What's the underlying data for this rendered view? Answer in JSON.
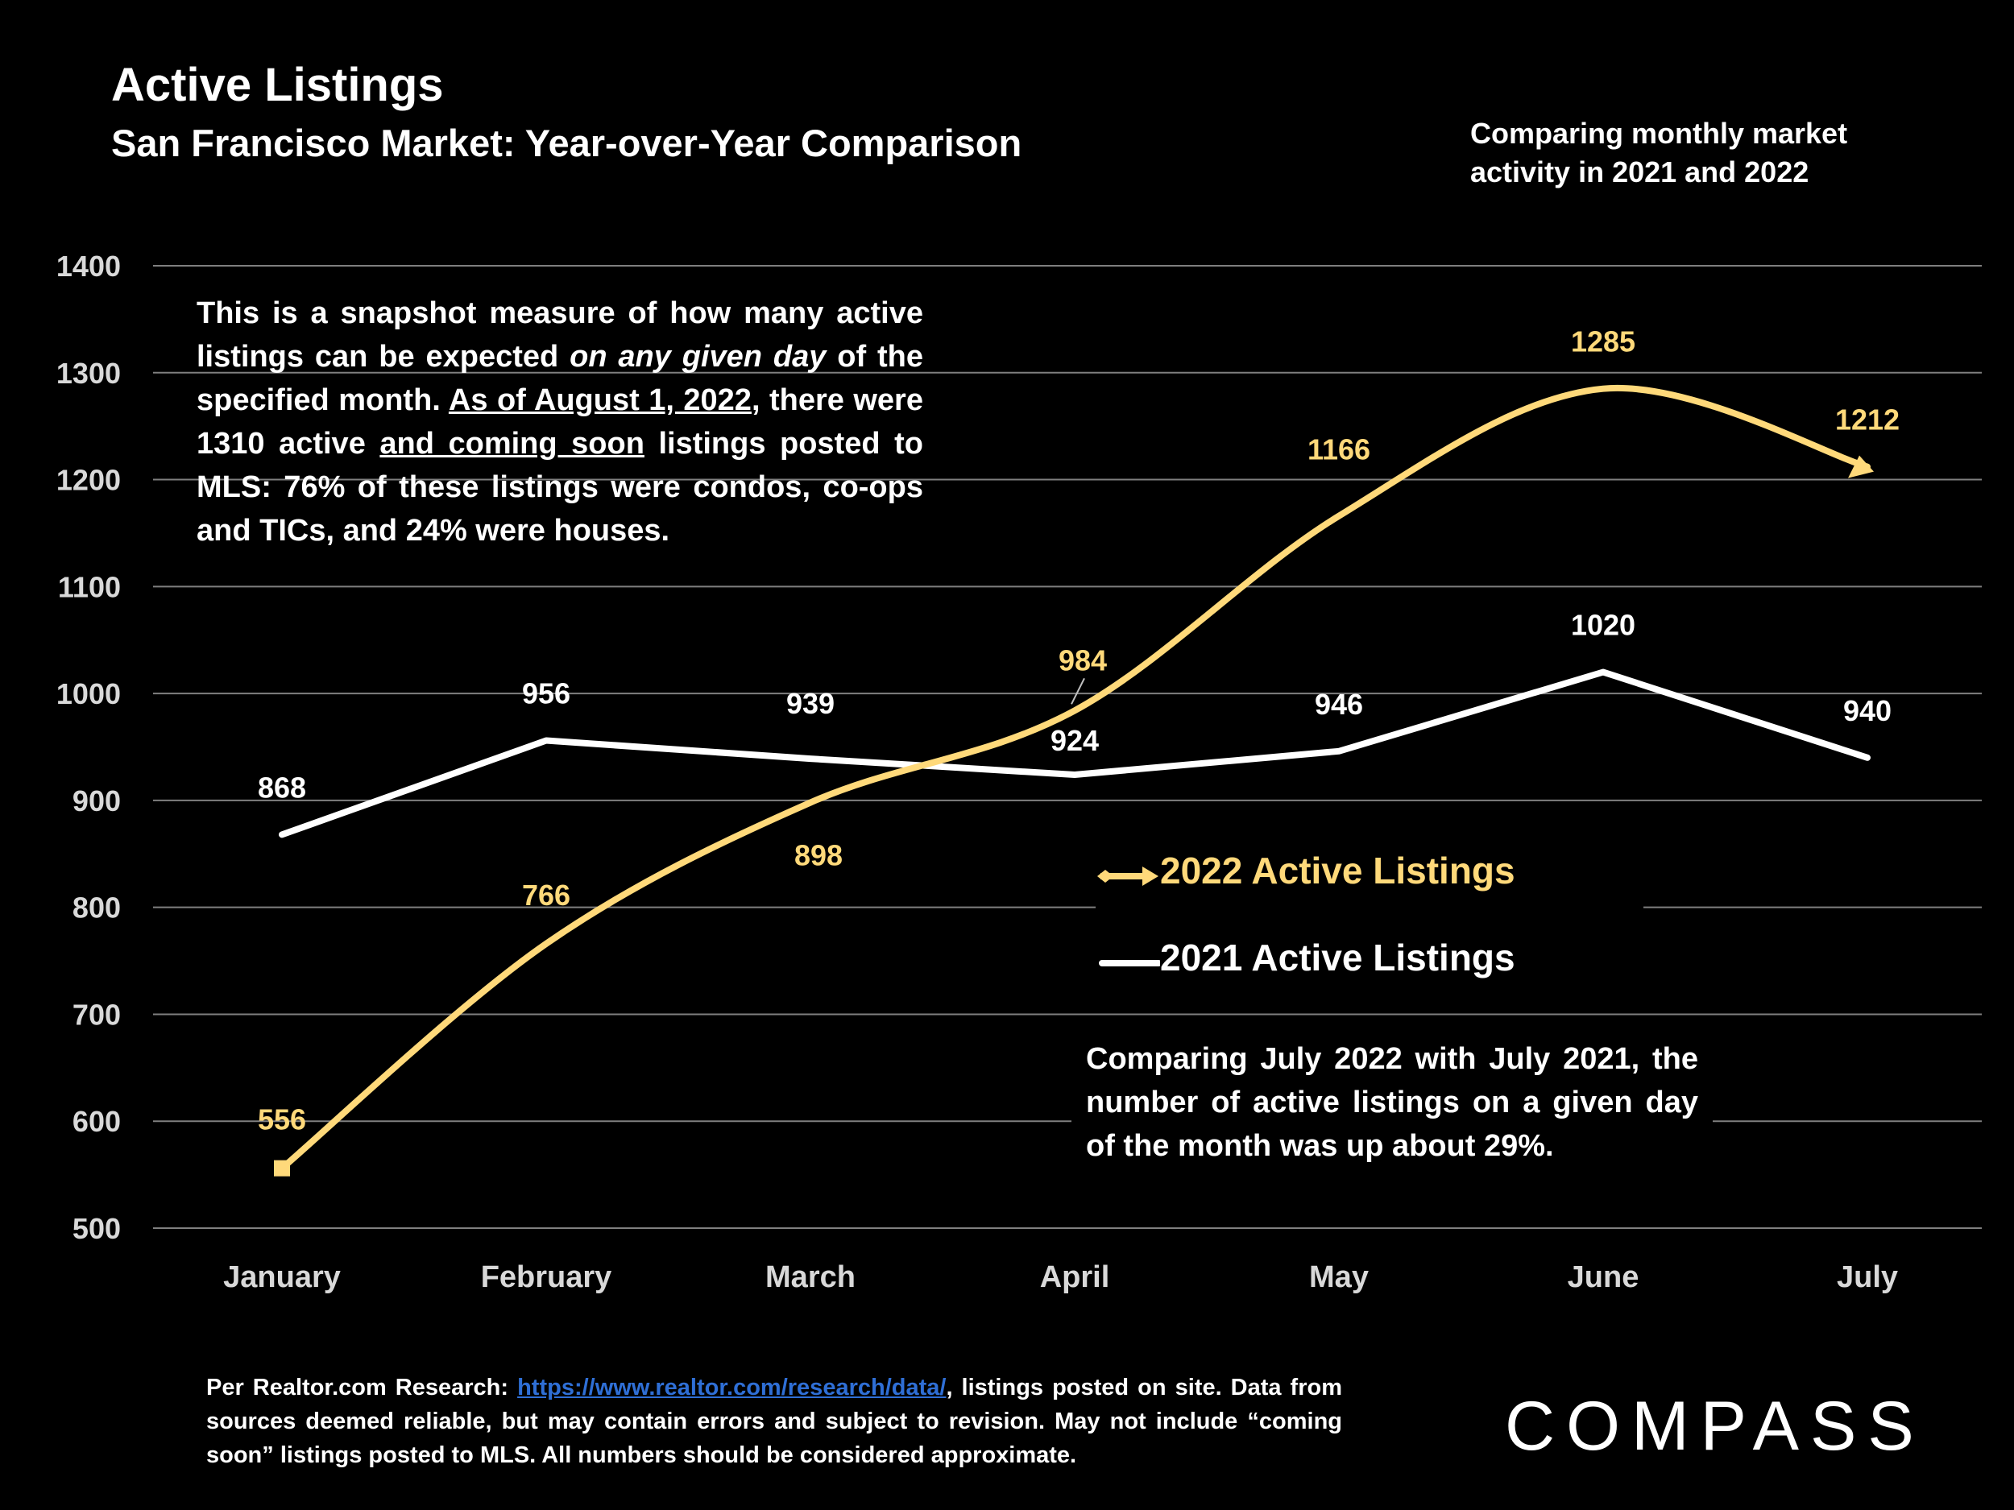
{
  "header": {
    "title": "Active Listings",
    "subtitle": "San Francisco Market: Year-over-Year Comparison",
    "note": "Comparing monthly market activity in 2021 and 2022"
  },
  "annotation": {
    "p1": "This is a snapshot measure of how many active listings can be expected ",
    "p1_italic": "on any given day",
    "p2": " of the specified month. ",
    "p2_underline": "As of August 1, 2022",
    "p3": ", there were 1310 active ",
    "p3_underline": "and coming soon",
    "p4": " listings posted to MLS: 76% of these listings were condos, co-ops and TICs, and 24% were houses."
  },
  "comparison_note": "Comparing July 2022 with July 2021, the number of active listings on a given day of the month was up about 29%.",
  "legend": {
    "series_2022": "2022 Active Listings",
    "series_2021": "2021 Active Listings"
  },
  "footer": {
    "prefix": "Per Realtor.com Research: ",
    "link": "https://www.realtor.com/research/data/",
    "rest": ", listings posted on site. Data from sources deemed reliable, but may contain errors and subject to revision. May not include “coming soon” listings posted to MLS. All numbers should be considered approximate."
  },
  "logo": "COMPASS",
  "colors": {
    "series_2022": "#ffd97a",
    "series_2021": "#ffffff",
    "gridline": "#7f7f7f",
    "link": "#2f6fd6"
  },
  "chart_data": {
    "type": "line",
    "categories": [
      "January",
      "February",
      "March",
      "April",
      "May",
      "June",
      "July"
    ],
    "series": [
      {
        "name": "2022 Active Listings",
        "values": [
          556,
          766,
          898,
          984,
          1166,
          1285,
          1212
        ]
      },
      {
        "name": "2021 Active Listings",
        "values": [
          868,
          956,
          939,
          924,
          946,
          1020,
          940
        ]
      }
    ],
    "ylim": [
      500,
      1400
    ],
    "yticks": [
      500,
      600,
      700,
      800,
      900,
      1000,
      1100,
      1200,
      1300,
      1400
    ],
    "grid": true,
    "legend_position": "center-right"
  }
}
